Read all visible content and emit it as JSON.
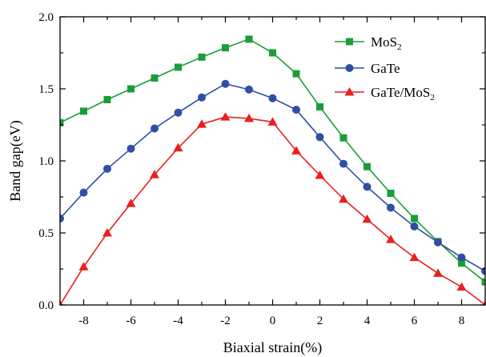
{
  "chart_data": {
    "type": "line",
    "title": "",
    "xlabel": "Biaxial strain(%)",
    "ylabel": "Band gap(eV)",
    "xlim": [
      -9,
      9
    ],
    "ylim": [
      0.0,
      2.0
    ],
    "x_ticks": [
      "-8",
      "-6",
      "-4",
      "-2",
      "0",
      "2",
      "4",
      "6",
      "8"
    ],
    "y_ticks": [
      "0.0",
      "0.5",
      "1.0",
      "1.5",
      "2.0"
    ],
    "grid": false,
    "legend_position": "top-right",
    "x": [
      -9,
      -8,
      -7,
      -6,
      -5,
      -4,
      -3,
      -2,
      -1,
      0,
      1,
      2,
      3,
      4,
      5,
      6,
      7,
      8,
      9
    ],
    "series": [
      {
        "name": "MoS",
        "name_subscript": "2",
        "color": "#1a9e3a",
        "marker": "square",
        "values": [
          1.265,
          1.345,
          1.425,
          1.5,
          1.575,
          1.65,
          1.72,
          1.785,
          1.845,
          1.75,
          1.605,
          1.375,
          1.16,
          0.96,
          0.775,
          0.6,
          0.44,
          0.29,
          0.16
        ]
      },
      {
        "name": "GaTe",
        "name_subscript": "",
        "color": "#2e4fa3",
        "marker": "circle",
        "values": [
          0.6,
          0.78,
          0.945,
          1.085,
          1.225,
          1.335,
          1.44,
          1.535,
          1.495,
          1.435,
          1.355,
          1.165,
          0.98,
          0.82,
          0.675,
          0.545,
          0.435,
          0.33,
          0.235
        ]
      },
      {
        "name": "GaTe/MoS",
        "name_subscript": "2",
        "color": "#e8201e",
        "marker": "triangle",
        "values": [
          0.0,
          0.265,
          0.5,
          0.705,
          0.905,
          1.09,
          1.255,
          1.305,
          1.295,
          1.27,
          1.07,
          0.9,
          0.735,
          0.595,
          0.455,
          0.33,
          0.22,
          0.125,
          0.0
        ]
      }
    ]
  }
}
